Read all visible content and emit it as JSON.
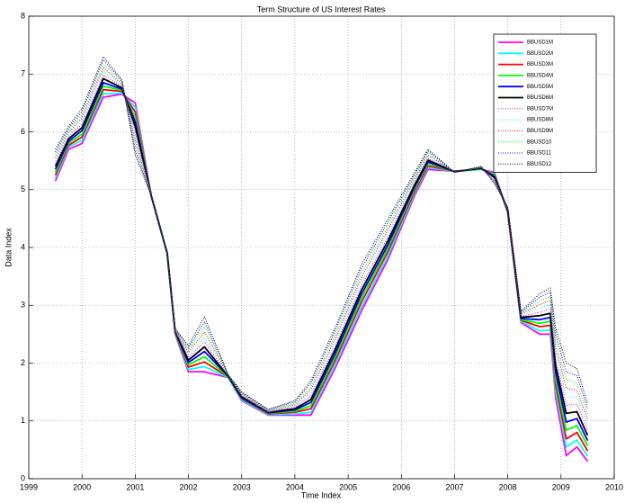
{
  "chart_data": {
    "type": "line",
    "title": "Term Structure of US Interest Rates",
    "x_label": "Time Index",
    "y_label": "Data Index",
    "xlim": [
      1999,
      2010
    ],
    "xticks": [
      1999,
      2000,
      2001,
      2002,
      2003,
      2004,
      2005,
      2006,
      2007,
      2008,
      2009,
      2010
    ],
    "ylim": [
      0,
      8
    ],
    "yticks": [
      0,
      1,
      2,
      3,
      4,
      5,
      6,
      7,
      8
    ],
    "grid": true,
    "legend": "upper right",
    "x": [
      1999.5,
      1999.75,
      2000.0,
      2000.4,
      2000.75,
      2001.0,
      2001.3,
      2001.6,
      2001.75,
      2002.0,
      2002.3,
      2002.75,
      2003.0,
      2003.5,
      2004.0,
      2004.3,
      2004.75,
      2005.25,
      2005.75,
      2006.25,
      2006.5,
      2007.0,
      2007.5,
      2007.75,
      2008.0,
      2008.25,
      2008.6,
      2008.8,
      2008.9,
      2009.1,
      2009.3,
      2009.5
    ],
    "series": [
      {
        "name": "BBUSD1M",
        "color": "#ff00ff",
        "style": "solid",
        "values": [
          5.15,
          5.7,
          5.8,
          6.6,
          6.65,
          6.5,
          4.9,
          3.9,
          2.5,
          1.85,
          1.85,
          1.75,
          1.35,
          1.1,
          1.1,
          1.1,
          1.9,
          2.9,
          3.8,
          4.9,
          5.35,
          5.32,
          5.35,
          5.3,
          4.6,
          2.7,
          2.5,
          2.5,
          1.4,
          0.4,
          0.55,
          0.3
        ]
      },
      {
        "name": "BBUSD2M",
        "color": "#00ffff",
        "style": "solid",
        "values": [
          5.2,
          5.74,
          5.85,
          6.66,
          6.67,
          6.42,
          4.9,
          3.9,
          2.51,
          1.89,
          1.94,
          1.75,
          1.36,
          1.11,
          1.12,
          1.15,
          1.96,
          2.97,
          3.86,
          4.94,
          5.38,
          5.32,
          5.35,
          5.28,
          4.61,
          2.72,
          2.56,
          2.57,
          1.51,
          0.55,
          0.67,
          0.39
        ]
      },
      {
        "name": "BBUSD3M",
        "color": "#ff0000",
        "style": "solid",
        "values": [
          5.25,
          5.77,
          5.91,
          6.73,
          6.7,
          6.34,
          4.9,
          3.9,
          2.52,
          1.93,
          2.02,
          1.76,
          1.38,
          1.12,
          1.15,
          1.21,
          2.03,
          3.05,
          3.93,
          4.97,
          5.41,
          5.32,
          5.36,
          5.26,
          4.62,
          2.74,
          2.63,
          2.65,
          1.62,
          0.69,
          0.8,
          0.48
        ]
      },
      {
        "name": "BBUSD4M",
        "color": "#00ff00",
        "style": "solid",
        "values": [
          5.3,
          5.81,
          5.96,
          6.79,
          6.72,
          6.25,
          4.9,
          3.9,
          2.53,
          1.97,
          2.11,
          1.76,
          1.39,
          1.13,
          1.17,
          1.26,
          2.09,
          3.12,
          3.99,
          5.01,
          5.45,
          5.31,
          5.36,
          5.25,
          4.63,
          2.75,
          2.69,
          2.72,
          1.73,
          0.84,
          0.92,
          0.57
        ]
      },
      {
        "name": "BBUSD5M",
        "color": "#0000ff",
        "style": "solid",
        "values": [
          5.35,
          5.84,
          6.02,
          6.85,
          6.74,
          6.17,
          4.9,
          3.9,
          2.54,
          2.01,
          2.2,
          1.77,
          1.4,
          1.14,
          1.19,
          1.32,
          2.15,
          3.19,
          4.05,
          5.05,
          5.48,
          5.31,
          5.37,
          5.23,
          4.64,
          2.77,
          2.75,
          2.79,
          1.84,
          0.98,
          1.04,
          0.66
        ]
      },
      {
        "name": "BBUSD6M",
        "color": "#000000",
        "style": "solid",
        "values": [
          5.4,
          5.88,
          6.07,
          6.92,
          6.76,
          6.09,
          4.9,
          3.9,
          2.55,
          2.05,
          2.28,
          1.77,
          1.42,
          1.15,
          1.21,
          1.37,
          2.22,
          3.26,
          4.12,
          5.08,
          5.51,
          5.31,
          5.37,
          5.21,
          4.65,
          2.79,
          2.82,
          2.86,
          1.95,
          1.13,
          1.16,
          0.75
        ]
      },
      {
        "name": "BBUSD7M",
        "color": "#ff00ff",
        "style": "dotted",
        "values": [
          5.45,
          5.92,
          6.13,
          6.98,
          6.79,
          6.01,
          4.9,
          3.9,
          2.55,
          2.1,
          2.37,
          1.78,
          1.43,
          1.15,
          1.24,
          1.43,
          2.28,
          3.34,
          4.18,
          5.12,
          5.54,
          5.31,
          5.38,
          5.19,
          4.65,
          2.81,
          2.88,
          2.94,
          2.05,
          1.27,
          1.29,
          0.85
        ]
      },
      {
        "name": "BBUSD8M",
        "color": "#00ffff",
        "style": "dotted",
        "values": [
          5.5,
          5.95,
          6.18,
          7.05,
          6.81,
          5.93,
          4.9,
          3.9,
          2.56,
          2.14,
          2.45,
          1.78,
          1.45,
          1.16,
          1.26,
          1.48,
          2.35,
          3.41,
          4.25,
          5.15,
          5.57,
          5.31,
          5.38,
          5.17,
          4.66,
          2.83,
          2.95,
          3.01,
          2.16,
          1.42,
          1.41,
          0.94
        ]
      },
      {
        "name": "BBUSD9M",
        "color": "#ff0000",
        "style": "dotted",
        "values": [
          5.55,
          5.99,
          6.24,
          7.11,
          6.83,
          5.85,
          4.9,
          3.9,
          2.57,
          2.18,
          2.54,
          1.79,
          1.46,
          1.17,
          1.28,
          1.54,
          2.41,
          3.48,
          4.31,
          5.19,
          5.6,
          5.3,
          5.39,
          5.15,
          4.67,
          2.85,
          3.01,
          3.08,
          2.27,
          1.56,
          1.53,
          1.03
        ]
      },
      {
        "name": "BBUSD10",
        "color": "#00ff00",
        "style": "dotted",
        "values": [
          5.6,
          6.03,
          6.29,
          7.17,
          6.86,
          5.76,
          4.9,
          3.9,
          2.58,
          2.22,
          2.63,
          1.79,
          1.47,
          1.18,
          1.3,
          1.59,
          2.47,
          3.55,
          4.37,
          5.23,
          5.64,
          5.3,
          5.39,
          5.14,
          4.68,
          2.86,
          3.07,
          3.15,
          2.38,
          1.71,
          1.65,
          1.12
        ]
      },
      {
        "name": "BBUSD11",
        "color": "#0000ff",
        "style": "dotted",
        "values": [
          5.65,
          6.06,
          6.35,
          7.24,
          6.88,
          5.68,
          4.9,
          3.9,
          2.59,
          2.26,
          2.71,
          1.8,
          1.49,
          1.19,
          1.33,
          1.65,
          2.54,
          3.63,
          4.44,
          5.26,
          5.67,
          5.3,
          5.4,
          5.12,
          4.69,
          2.88,
          3.14,
          3.23,
          2.49,
          1.85,
          1.78,
          1.21
        ]
      },
      {
        "name": "BBUSD12",
        "color": "#000000",
        "style": "dotted",
        "values": [
          5.7,
          6.1,
          6.4,
          7.3,
          6.9,
          5.6,
          4.9,
          3.9,
          2.6,
          2.3,
          2.8,
          1.8,
          1.5,
          1.2,
          1.35,
          1.7,
          2.6,
          3.7,
          4.5,
          5.3,
          5.7,
          5.3,
          5.4,
          5.1,
          4.7,
          2.9,
          3.2,
          3.3,
          2.6,
          2.0,
          1.9,
          1.3
        ]
      }
    ]
  }
}
